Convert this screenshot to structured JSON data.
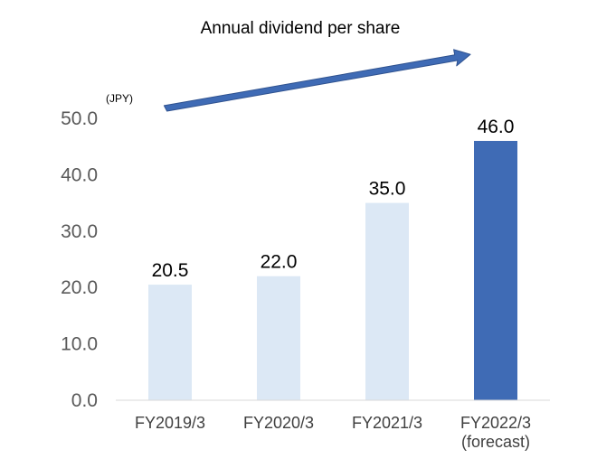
{
  "chart_data": {
    "type": "bar",
    "title": "Annual dividend per share",
    "ylabel": "(JPY)",
    "xlabel": "",
    "categories": [
      [
        "FY2019/3"
      ],
      [
        "FY2020/3"
      ],
      [
        "FY2021/3"
      ],
      [
        "FY2022/3",
        "(forecast)"
      ]
    ],
    "values": [
      20.5,
      22.0,
      35.0,
      46.0
    ],
    "data_labels": [
      "20.5",
      "22.0",
      "35.0",
      "46.0"
    ],
    "ylim": [
      0,
      50
    ],
    "yticks": [
      0,
      10,
      20,
      30,
      40,
      50
    ],
    "ytick_labels": [
      "0.0",
      "10.0",
      "20.0",
      "30.0",
      "40.0",
      "50.0"
    ],
    "grid": false,
    "legend": "none",
    "bar_colors": [
      "#dce8f5",
      "#dce8f5",
      "#dce8f5",
      "#3f6bb5"
    ],
    "arrow_color": "#3f6bb5",
    "axis_color": "#d9d9d9"
  }
}
